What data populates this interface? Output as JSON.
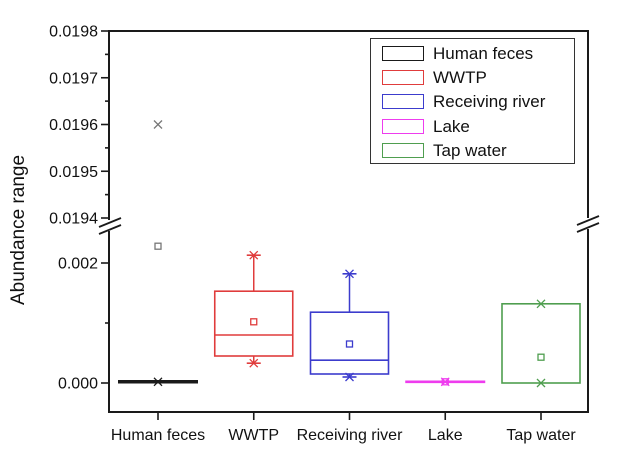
{
  "chart_data": {
    "type": "boxplot",
    "title": "",
    "ylabel": "Abundance range",
    "grid": false,
    "legend": {
      "position": "top-right",
      "entries": [
        "Human feces",
        "WWTP",
        "Receiving river",
        "Lake",
        "Tap water"
      ]
    },
    "y_axis": {
      "broken": true,
      "upper_segment_range": [
        0.0194,
        0.0198
      ],
      "upper_major_ticks": [
        {
          "value": 0.0198,
          "label": "0.0198"
        },
        {
          "value": 0.0197,
          "label": "0.0197"
        },
        {
          "value": 0.0196,
          "label": "0.0196"
        },
        {
          "value": 0.0195,
          "label": "0.0195"
        },
        {
          "value": 0.0194,
          "label": "0.0194"
        }
      ],
      "upper_minor_ticks": [
        0.01945,
        0.01955,
        0.01965,
        0.01975
      ],
      "lower_segment_range": [
        -0.0005,
        0.0025
      ],
      "lower_major_ticks": [
        {
          "value": 0.002,
          "label": "0.002"
        },
        {
          "value": 0.0,
          "label": "0.000"
        }
      ],
      "lower_minor_ticks": [
        0.001
      ]
    },
    "categories": [
      "Human feces",
      "WWTP",
      "Receiving river",
      "Lake",
      "Tap water"
    ],
    "series": [
      {
        "name": "Human feces",
        "color": "#1a1a1a",
        "style": "line",
        "line_value": 2e-05,
        "mean": 0.00228,
        "x_markers": [
          0.0196,
          2e-05
        ]
      },
      {
        "name": "WWTP",
        "color": "#e03c3c",
        "style": "box",
        "q1": 0.00045,
        "median": 0.0008,
        "q3": 0.00153,
        "whisker_low": 0.00033,
        "whisker_high": 0.00213,
        "mean": 0.00102,
        "x_markers": []
      },
      {
        "name": "Receiving river",
        "color": "#3c3ccd",
        "style": "box",
        "q1": 0.00015,
        "median": 0.00038,
        "q3": 0.00118,
        "whisker_low": 0.0001,
        "whisker_high": 0.00182,
        "mean": 0.00065,
        "x_markers": []
      },
      {
        "name": "Lake",
        "color": "#ee3cee",
        "style": "line",
        "line_value": 2e-05,
        "mean": 2e-05,
        "x_markers": [
          2e-05
        ]
      },
      {
        "name": "Tap water",
        "color": "#4f9e4f",
        "style": "box",
        "q1": 0.0,
        "median": null,
        "q3": 0.00132,
        "whisker_low": 0.0,
        "whisker_high": 0.00132,
        "mean": 0.00043,
        "x_markers": [
          0.00132,
          0.0
        ]
      }
    ]
  }
}
